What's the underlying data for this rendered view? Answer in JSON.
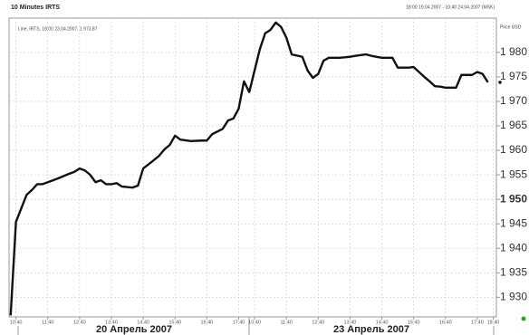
{
  "chart_data": {
    "type": "line",
    "title": "10 Minutes IRTS",
    "subtitle": "18:00 19.04.2007 - 10:40 24.04.2007 (MSK)",
    "legend_text": "Line, IRTS, 18:00 23.04.2007, 1 973.87",
    "y_axis_label": "Price USD",
    "x_group_labels": [
      "20 Апрель 2007",
      "23 Апрель 2007"
    ],
    "series": [
      {
        "name": "IRTS",
        "color": "#111111",
        "x": [
          0,
          1,
          3,
          4,
          5,
          6,
          8,
          9,
          11,
          12,
          13,
          14,
          15,
          16,
          17,
          18,
          19,
          20,
          21,
          23,
          24,
          25,
          27,
          28,
          29,
          30,
          31,
          32,
          34,
          36,
          37,
          38,
          40,
          41,
          42,
          43,
          44,
          45,
          47,
          48,
          49,
          50,
          51,
          52,
          53,
          55,
          56,
          57,
          58,
          59,
          60,
          62,
          64,
          65,
          67,
          68,
          70,
          72,
          73,
          75,
          76,
          78,
          79,
          80,
          81,
          82,
          84,
          85,
          87,
          88,
          89,
          90
        ],
        "values": [
          1926.3,
          1945.4,
          1950.9,
          1951.9,
          1953.1,
          1953.1,
          1953.9,
          1954.3,
          1955.2,
          1955.6,
          1956.3,
          1955.9,
          1955,
          1953.5,
          1953.9,
          1953.1,
          1953.1,
          1953.3,
          1952.6,
          1952.4,
          1952.8,
          1956.3,
          1958,
          1958.9,
          1960.2,
          1961.1,
          1963,
          1962.2,
          1961.9,
          1962,
          1962,
          1963.3,
          1964.4,
          1966.1,
          1966.5,
          1968.5,
          1974.1,
          1971.9,
          1980.7,
          1983.9,
          1984.6,
          1986.1,
          1985.2,
          1983,
          1979.6,
          1979.1,
          1976.3,
          1974.8,
          1975.6,
          1978.3,
          1978.9,
          1978.9,
          1979.1,
          1979.3,
          1979.6,
          1979.3,
          1978.9,
          1978.9,
          1976.9,
          1976.9,
          1977,
          1975,
          1974.1,
          1973.1,
          1973,
          1972.8,
          1972.8,
          1975.4,
          1975.4,
          1976,
          1975.6,
          1973.9
        ]
      }
    ],
    "xlim": [
      -0.3,
      91.6
    ],
    "xticks": [
      {
        "value": 1,
        "label": "10:40"
      },
      {
        "value": 7,
        "label": "11:40"
      },
      {
        "value": 13,
        "label": "12:40"
      },
      {
        "value": 19,
        "label": "13:40"
      },
      {
        "value": 25,
        "label": "14:40"
      },
      {
        "value": 31,
        "label": "15:40"
      },
      {
        "value": 37,
        "label": "16:40"
      },
      {
        "value": 43,
        "label": "17:40"
      },
      {
        "value": 46,
        "label": "10:40"
      },
      {
        "value": 52,
        "label": "11:40"
      },
      {
        "value": 58,
        "label": "12:40"
      },
      {
        "value": 64,
        "label": "13:40"
      },
      {
        "value": 70,
        "label": "14:40"
      },
      {
        "value": 76,
        "label": "15:40"
      },
      {
        "value": 82,
        "label": "16:40"
      },
      {
        "value": 88,
        "label": "17:40"
      },
      {
        "value": 91,
        "label": "18:40"
      }
    ],
    "ylim": [
      1926,
      1987
    ],
    "yticks": [
      {
        "value": 1930,
        "label": "1 930"
      },
      {
        "value": 1935,
        "label": "1 935"
      },
      {
        "value": 1940,
        "label": "1 940"
      },
      {
        "value": 1945,
        "label": "1 945"
      },
      {
        "value": 1950,
        "label": "1 950"
      },
      {
        "value": 1955,
        "label": "1 955"
      },
      {
        "value": 1960,
        "label": "1 960"
      },
      {
        "value": 1965,
        "label": "1 965"
      },
      {
        "value": 1970,
        "label": "1 970"
      },
      {
        "value": 1975,
        "label": "1 975"
      },
      {
        "value": 1980,
        "label": "1 980"
      }
    ],
    "bold_ytick": 1950,
    "grid": true
  }
}
